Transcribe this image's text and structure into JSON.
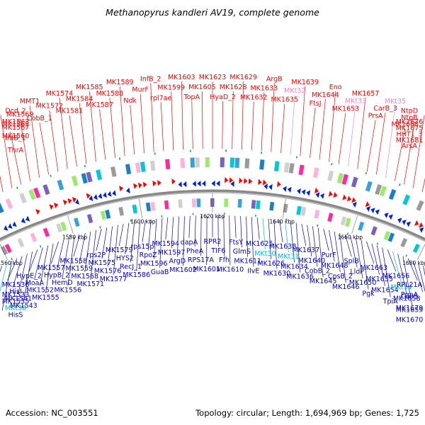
{
  "title": "Methanopyrus kandleri AV19, complete genome",
  "footer": {
    "accession": "Accession: NC_003551",
    "summary": "Topology: circular; Length: 1,694,969 bp; Genes: 1,725"
  },
  "colors": {
    "forward_label": "#ff0000",
    "reverse_label": "#0000cc",
    "rna_label": "#00bbdd",
    "pseudo_label": "#ee88cc",
    "backbone": "#888888"
  },
  "ticks": [
    "1560 kbp",
    "1580 kbp",
    "1600 kbp",
    "1620 kbp",
    "1640 kbp",
    "1660 kbp",
    "1680 kbp"
  ],
  "top_labels": [
    {
      "text": "ThrA",
      "type": "forward"
    },
    {
      "text": "MK1560",
      "type": "forward"
    },
    {
      "text": "MK1563",
      "type": "forward"
    },
    {
      "text": "InfB_1",
      "type": "forward"
    },
    {
      "text": "MK1565",
      "type": "forward"
    },
    {
      "text": "Dcd_2",
      "type": "forward"
    },
    {
      "text": "MK1567",
      "type": "forward"
    },
    {
      "text": "MK1569",
      "type": "forward"
    },
    {
      "text": "MMT1",
      "type": "forward"
    },
    {
      "text": "CobB_1",
      "type": "forward"
    },
    {
      "text": "MK1572",
      "type": "forward"
    },
    {
      "text": "MK1574",
      "type": "forward"
    },
    {
      "text": "MK1581",
      "type": "forward"
    },
    {
      "text": "MK1584",
      "type": "forward"
    },
    {
      "text": "MK1585",
      "type": "forward"
    },
    {
      "text": "MK1587",
      "type": "forward"
    },
    {
      "text": "MK1588",
      "type": "forward"
    },
    {
      "text": "MK1589",
      "type": "forward"
    },
    {
      "text": "Ndk",
      "type": "forward"
    },
    {
      "text": "MurF",
      "type": "forward"
    },
    {
      "text": "InfB_2",
      "type": "forward"
    },
    {
      "text": "rpl7ae",
      "type": "forward"
    },
    {
      "text": "MK1599",
      "type": "forward"
    },
    {
      "text": "MK1603",
      "type": "forward"
    },
    {
      "text": "TopA",
      "type": "forward"
    },
    {
      "text": "MK1605",
      "type": "forward"
    },
    {
      "text": "MK1623",
      "type": "forward"
    },
    {
      "text": "HyaD_2",
      "type": "forward"
    },
    {
      "text": "MK1628",
      "type": "forward"
    },
    {
      "text": "MK1629",
      "type": "forward"
    },
    {
      "text": "MK1632",
      "type": "forward"
    },
    {
      "text": "MK1633",
      "type": "forward"
    },
    {
      "text": "ArgB",
      "type": "forward"
    },
    {
      "text": "MK1635",
      "type": "forward"
    },
    {
      "text": "MKt32",
      "type": "pseudo"
    },
    {
      "text": "MK1639",
      "type": "forward"
    },
    {
      "text": "FtsJ",
      "type": "forward"
    },
    {
      "text": "MK1644",
      "type": "forward"
    },
    {
      "text": "Eno",
      "type": "forward"
    },
    {
      "text": "MK1653",
      "type": "forward"
    },
    {
      "text": "MKt33",
      "type": "pseudo"
    },
    {
      "text": "MK1657",
      "type": "forward"
    },
    {
      "text": "PrsA",
      "type": "forward"
    },
    {
      "text": "CarB_3",
      "type": "forward"
    },
    {
      "text": "MKt35",
      "type": "pseudo"
    },
    {
      "text": "MK1668",
      "type": "forward"
    },
    {
      "text": "NtpB",
      "type": "forward"
    },
    {
      "text": "NtpD",
      "type": "forward"
    },
    {
      "text": "HHT1_3",
      "type": "forward"
    },
    {
      "text": "MK1675",
      "type": "forward"
    },
    {
      "text": "MK1676",
      "type": "forward"
    },
    {
      "text": "ArsA",
      "type": "forward"
    },
    {
      "text": "MK1681",
      "type": "forward"
    }
  ],
  "bottom_labels": [
    {
      "text": "MK1533",
      "type": "reverse"
    },
    {
      "text": "MK1535",
      "type": "reverse"
    },
    {
      "text": "MKt38",
      "type": "rna"
    },
    {
      "text": "HisS",
      "type": "reverse"
    },
    {
      "text": "MK1536",
      "type": "reverse"
    },
    {
      "text": "HisI",
      "type": "reverse"
    },
    {
      "text": "MK1541",
      "type": "reverse"
    },
    {
      "text": "MK1543",
      "type": "reverse"
    },
    {
      "text": "HypE_2",
      "type": "reverse"
    },
    {
      "text": "MoaA",
      "type": "reverse"
    },
    {
      "text": "MK1552",
      "type": "reverse"
    },
    {
      "text": "MK1555",
      "type": "reverse"
    },
    {
      "text": "MK1557",
      "type": "reverse"
    },
    {
      "text": "HypB_2",
      "type": "reverse"
    },
    {
      "text": "HemD",
      "type": "reverse"
    },
    {
      "text": "MK1556",
      "type": "reverse"
    },
    {
      "text": "MK1558",
      "type": "reverse"
    },
    {
      "text": "MK1559",
      "type": "reverse"
    },
    {
      "text": "MK1568",
      "type": "reverse"
    },
    {
      "text": "MK1571",
      "type": "reverse"
    },
    {
      "text": "rps2P",
      "type": "reverse"
    },
    {
      "text": "MK1575",
      "type": "reverse"
    },
    {
      "text": "MK1576",
      "type": "reverse"
    },
    {
      "text": "MK1577",
      "type": "reverse"
    },
    {
      "text": "MK1579",
      "type": "reverse"
    },
    {
      "text": "HYS2",
      "type": "reverse"
    },
    {
      "text": "RecJ_1",
      "type": "reverse"
    },
    {
      "text": "MK1586",
      "type": "reverse"
    },
    {
      "text": "rps15p",
      "type": "reverse"
    },
    {
      "text": "RpoZ",
      "type": "reverse"
    },
    {
      "text": "MK1596",
      "type": "reverse"
    },
    {
      "text": "GuaB",
      "type": "reverse"
    },
    {
      "text": "MK1594",
      "type": "reverse"
    },
    {
      "text": "MK1597",
      "type": "reverse"
    },
    {
      "text": "ArgD",
      "type": "reverse"
    },
    {
      "text": "MK1602",
      "type": "reverse"
    },
    {
      "text": "dapA",
      "type": "reverse"
    },
    {
      "text": "PheA",
      "type": "reverse"
    },
    {
      "text": "RPS17A",
      "type": "reverse"
    },
    {
      "text": "MK1601",
      "type": "reverse"
    },
    {
      "text": "RPR2",
      "type": "reverse"
    },
    {
      "text": "TIF6",
      "type": "reverse"
    },
    {
      "text": "Ffh",
      "type": "reverse"
    },
    {
      "text": "MK1610",
      "type": "reverse"
    },
    {
      "text": "FtsY",
      "type": "reverse"
    },
    {
      "text": "GlmS",
      "type": "reverse"
    },
    {
      "text": "MK1611",
      "type": "reverse"
    },
    {
      "text": "IlvE",
      "type": "reverse"
    },
    {
      "text": "MK1625",
      "type": "reverse"
    },
    {
      "text": "MKt30",
      "type": "rna"
    },
    {
      "text": "MK1626",
      "type": "reverse"
    },
    {
      "text": "MK1630",
      "type": "reverse"
    },
    {
      "text": "MK1638",
      "type": "reverse"
    },
    {
      "text": "MKt31",
      "type": "rna"
    },
    {
      "text": "MK1634",
      "type": "reverse"
    },
    {
      "text": "MK1636",
      "type": "reverse"
    },
    {
      "text": "MK1637",
      "type": "reverse"
    },
    {
      "text": "MK1640",
      "type": "reverse"
    },
    {
      "text": "CobB_2",
      "type": "reverse"
    },
    {
      "text": "MK1645",
      "type": "reverse"
    },
    {
      "text": "PurF",
      "type": "reverse"
    },
    {
      "text": "MK1648",
      "type": "reverse"
    },
    {
      "text": "CpsB_2",
      "type": "reverse"
    },
    {
      "text": "MK1646",
      "type": "reverse"
    },
    {
      "text": "SplB",
      "type": "reverse"
    },
    {
      "text": "LldP",
      "type": "reverse"
    },
    {
      "text": "MK1650",
      "type": "reverse"
    },
    {
      "text": "Pgk",
      "type": "reverse"
    },
    {
      "text": "MK1663",
      "type": "reverse"
    },
    {
      "text": "MK1655",
      "type": "reverse"
    },
    {
      "text": "MK1654",
      "type": "reverse"
    },
    {
      "text": "TpiA",
      "type": "reverse"
    },
    {
      "text": "MK1656",
      "type": "reverse"
    },
    {
      "text": "MKt34",
      "type": "rna"
    },
    {
      "text": "MK1658",
      "type": "reverse"
    },
    {
      "text": "MK1659",
      "type": "reverse"
    },
    {
      "text": "RPL21A",
      "type": "reverse"
    },
    {
      "text": "CobS",
      "type": "reverse"
    },
    {
      "text": "MK1679",
      "type": "reverse"
    },
    {
      "text": "MK1670",
      "type": "reverse"
    },
    {
      "text": "PgpA",
      "type": "reverse"
    }
  ]
}
